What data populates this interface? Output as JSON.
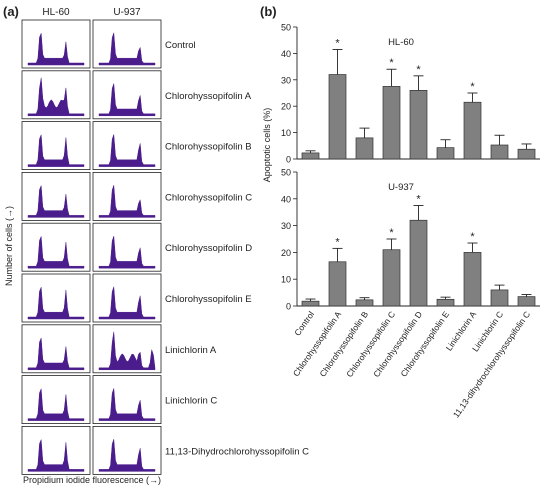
{
  "panel_a": {
    "label": "(a)",
    "col_headers": [
      "HL-60",
      "U-937"
    ],
    "row_labels": [
      "Control",
      "Chlorohyssopifolin A",
      "Chlorohyssopifolin B",
      "Chlorohyssopifolin C",
      "Chlorohyssopifolin D",
      "Chlorohyssopifolin E",
      "Linichlorin A",
      "Linichlorin C",
      "11,13-Dihydrochlorohyssopifolin C"
    ],
    "ylabel": "Number of cells (→)",
    "xlabel": "Propidium iodide fluorescence (→)",
    "fill_color": "#4b1c8c"
  },
  "panel_b": {
    "label": "(b)",
    "ylabel": "Apoptotic cells (%)",
    "bar_color": "#808080",
    "star": "*"
  },
  "chart_data": [
    {
      "type": "bar",
      "title": "HL-60",
      "categories": [
        "Control",
        "Chlorohyssopifolin A",
        "Chlorohyssopifolin B",
        "Chlorohyssopifolin C",
        "Chlorohyssopifolin D",
        "Chlorohyssopifolin E",
        "Linichlorin A",
        "Linichlorin C",
        "11,13-dihydrochlorohyssopifolin C"
      ],
      "values": [
        2.3,
        32,
        8,
        27.5,
        26,
        4.3,
        21.5,
        5.3,
        3.7
      ],
      "errors": [
        0.8,
        9.5,
        3.7,
        6.5,
        5.5,
        3,
        3.5,
        3.7,
        2
      ],
      "significant": [
        false,
        true,
        false,
        true,
        true,
        false,
        true,
        false,
        false
      ],
      "ylabel": "Apoptotic cells (%)",
      "ylim": [
        0,
        50
      ],
      "yticks": [
        0,
        10,
        20,
        30,
        40,
        50
      ]
    },
    {
      "type": "bar",
      "title": "U-937",
      "categories": [
        "Control",
        "Chlorohyssopifolin A",
        "Chlorohyssopifolin B",
        "Chlorohyssopifolin C",
        "Chlorohyssopifolin D",
        "Chlorohyssopifolin E",
        "Linichlorin A",
        "Linichlorin C",
        "11,13-dihydrochlorohyssopifolin C"
      ],
      "values": [
        1.8,
        16.5,
        2.3,
        21,
        32,
        2.5,
        20,
        6,
        3.5
      ],
      "errors": [
        0.8,
        5,
        0.8,
        4,
        5.5,
        0.8,
        3.5,
        1.8,
        0.8
      ],
      "significant": [
        false,
        true,
        false,
        true,
        true,
        false,
        true,
        false,
        false
      ],
      "ylabel": "Apoptotic cells (%)",
      "ylim": [
        0,
        50
      ],
      "yticks": [
        0,
        10,
        20,
        30,
        40,
        50
      ]
    }
  ]
}
